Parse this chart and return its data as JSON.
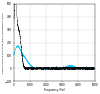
{
  "title": "",
  "xlabel": "Frequency (Hz)",
  "ylabel": "Engine vibration amplitude (black) and gearbox (blue)",
  "xlim": [
    0,
    5000
  ],
  "ylim": [
    -100,
    500
  ],
  "yticks": [
    -100,
    0,
    100,
    200,
    300,
    400,
    500
  ],
  "xticks": [
    0,
    1000,
    2000,
    3000,
    4000,
    5000
  ],
  "engine_color": "#000000",
  "gearbox_color": "#00bfff",
  "background_color": "#ffffff",
  "grid_color": "#cccccc",
  "engine_peak": 480,
  "gearbox_peak": 140,
  "noise_floor": 4
}
